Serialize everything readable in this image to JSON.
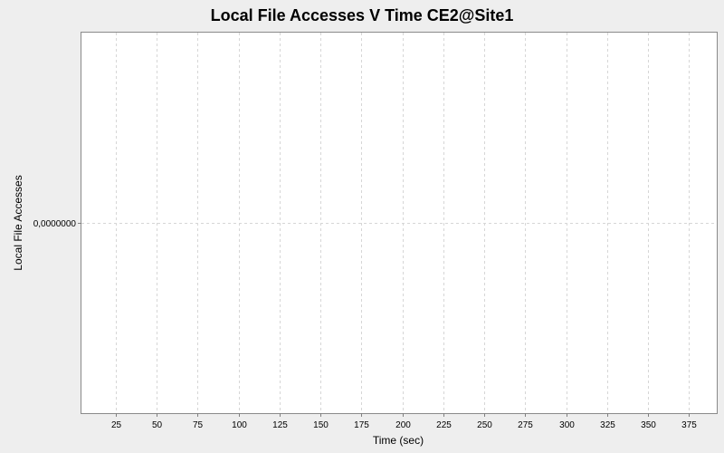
{
  "chart_data": {
    "type": "line",
    "title": "Local File Accesses V Time CE2@Site1",
    "xlabel": "Time (sec)",
    "ylabel": "Local File Accesses",
    "xlim": [
      4,
      392
    ],
    "ylim": [
      -1,
      1
    ],
    "x_ticks": [
      25,
      50,
      75,
      100,
      125,
      150,
      175,
      200,
      225,
      250,
      275,
      300,
      325,
      350,
      375
    ],
    "y_ticks": [
      0
    ],
    "y_tick_labels": [
      "0,0000000"
    ],
    "grid": true,
    "series": []
  },
  "colors": {
    "background": "#eeeeee",
    "plot_background": "#ffffff",
    "grid": "#d6d6d6"
  }
}
